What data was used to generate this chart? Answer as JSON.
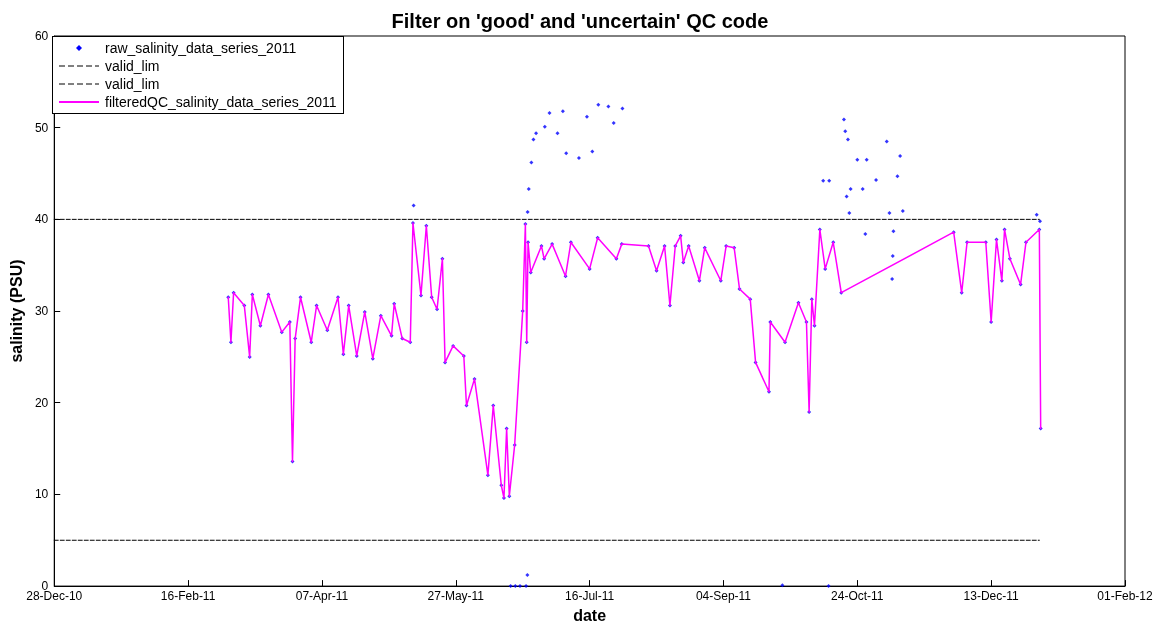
{
  "chart_data": {
    "type": "line",
    "title": "Filter on 'good' and 'uncertain' QC code",
    "xlabel": "date",
    "ylabel": "salinity (PSU)",
    "xlim": [
      "2010-12-28",
      "2012-02-01"
    ],
    "xticks": [
      {
        "value": "2010-12-28",
        "label": "28-Dec-10"
      },
      {
        "value": "2011-02-16",
        "label": "16-Feb-11"
      },
      {
        "value": "2011-04-07",
        "label": "07-Apr-11"
      },
      {
        "value": "2011-05-27",
        "label": "27-May-11"
      },
      {
        "value": "2011-07-16",
        "label": "16-Jul-11"
      },
      {
        "value": "2011-09-04",
        "label": "04-Sep-11"
      },
      {
        "value": "2011-10-24",
        "label": "24-Oct-11"
      },
      {
        "value": "2011-12-13",
        "label": "13-Dec-11"
      },
      {
        "value": "2012-02-01",
        "label": "01-Feb-12"
      }
    ],
    "ylim": [
      0,
      60
    ],
    "yticks": [
      0,
      10,
      20,
      30,
      40,
      50,
      60
    ],
    "grid": false,
    "legend": "top left",
    "series": [
      {
        "name": "raw_salinity_data_series_2011",
        "type": "scatter",
        "marker": "diamond",
        "color": "#0000ff",
        "x": [
          "2011-03-03",
          "2011-03-04",
          "2011-03-05",
          "2011-03-09",
          "2011-03-11",
          "2011-03-12",
          "2011-03-15",
          "2011-03-18",
          "2011-03-23",
          "2011-03-26",
          "2011-03-27",
          "2011-03-28",
          "2011-03-30",
          "2011-04-03",
          "2011-04-05",
          "2011-04-09",
          "2011-04-13",
          "2011-04-15",
          "2011-04-17",
          "2011-04-20",
          "2011-04-23",
          "2011-04-26",
          "2011-04-29",
          "2011-05-03",
          "2011-05-04",
          "2011-05-07",
          "2011-05-10",
          "2011-05-11",
          "2011-05-14",
          "2011-05-16",
          "2011-05-18",
          "2011-05-20",
          "2011-05-22",
          "2011-05-23",
          "2011-05-26",
          "2011-05-30",
          "2011-05-31",
          "2011-06-03",
          "2011-06-08",
          "2011-06-10",
          "2011-06-13",
          "2011-06-14",
          "2011-06-15",
          "2011-06-16",
          "2011-06-18",
          "2011-06-21",
          "2011-06-22",
          "2011-06-22T12:00",
          "2011-06-23",
          "2011-06-24",
          "2011-06-28",
          "2011-06-29",
          "2011-07-02",
          "2011-07-07",
          "2011-07-09",
          "2011-07-16",
          "2011-07-19",
          "2011-07-26",
          "2011-07-28",
          "2011-08-07",
          "2011-08-10",
          "2011-08-13",
          "2011-08-15",
          "2011-08-17",
          "2011-08-19",
          "2011-08-20",
          "2011-08-22",
          "2011-08-26",
          "2011-08-28",
          "2011-09-03",
          "2011-09-05",
          "2011-09-08",
          "2011-09-10",
          "2011-09-14",
          "2011-09-16",
          "2011-09-21",
          "2011-09-21T12:00",
          "2011-09-27",
          "2011-10-02",
          "2011-10-05",
          "2011-10-06",
          "2011-10-07",
          "2011-10-08",
          "2011-10-10",
          "2011-10-12",
          "2011-10-15",
          "2011-10-18",
          "2011-11-29",
          "2011-12-02",
          "2011-12-04",
          "2011-12-11",
          "2011-12-13",
          "2011-12-15",
          "2011-12-17",
          "2011-12-18",
          "2011-12-20",
          "2011-12-24",
          "2011-12-26",
          "2011-12-31",
          "2011-12-31T12:00",
          "2011-05-11T06:00",
          "2011-06-16T12:00",
          "2011-06-18T06:00",
          "2011-06-20",
          "2011-06-22T06:00",
          "2011-06-22T18:00",
          "2011-06-22T20:00",
          "2011-06-23T06:00",
          "2011-06-24T06:00",
          "2011-06-25",
          "2011-06-26",
          "2011-06-29T06:00",
          "2011-07-01",
          "2011-07-04",
          "2011-07-06",
          "2011-07-07T06:00",
          "2011-07-12",
          "2011-07-15",
          "2011-07-17",
          "2011-07-19T06:00",
          "2011-07-23",
          "2011-07-25",
          "2011-07-28T06:00",
          "2011-09-26",
          "2011-10-11T06:00",
          "2011-10-13T06:00",
          "2011-10-13T12:00",
          "2011-10-19",
          "2011-10-19T12:00",
          "2011-10-20",
          "2011-10-20T12:00",
          "2011-10-21",
          "2011-10-21T12:00",
          "2011-10-24",
          "2011-10-26",
          "2011-10-27",
          "2011-10-27T12:00",
          "2011-10-31",
          "2011-11-04",
          "2011-11-05",
          "2011-11-06",
          "2011-11-06T06:00",
          "2011-11-06T12:00",
          "2011-11-08",
          "2011-11-09",
          "2011-11-10",
          "2011-12-30",
          "2011-12-31T06:00"
        ],
        "values": [
          31.5,
          26.6,
          32.0,
          30.6,
          25.0,
          31.8,
          28.4,
          31.8,
          27.7,
          28.8,
          13.6,
          27.0,
          31.5,
          26.6,
          30.6,
          27.9,
          31.5,
          25.3,
          30.6,
          25.1,
          29.9,
          24.8,
          29.5,
          27.3,
          30.8,
          27.0,
          26.6,
          39.6,
          31.7,
          39.3,
          31.5,
          30.2,
          35.7,
          24.4,
          26.2,
          25.1,
          19.7,
          22.6,
          12.1,
          19.7,
          11.0,
          9.6,
          17.2,
          9.8,
          15.4,
          30.0,
          39.5,
          26.6,
          37.5,
          34.2,
          37.1,
          35.7,
          37.3,
          33.8,
          37.5,
          34.6,
          38.0,
          35.7,
          37.3,
          37.1,
          34.4,
          37.1,
          30.6,
          37.1,
          38.2,
          35.3,
          37.1,
          33.3,
          36.9,
          33.3,
          37.1,
          36.9,
          32.4,
          31.3,
          24.4,
          21.2,
          28.8,
          26.6,
          30.9,
          28.8,
          19.0,
          31.3,
          28.4,
          38.9,
          34.6,
          37.5,
          32.0,
          38.6,
          32.0,
          37.5,
          37.5,
          28.8,
          37.8,
          33.3,
          38.9,
          35.7,
          32.9,
          37.5,
          38.9,
          17.2,
          41.5,
          0,
          0,
          0,
          0,
          1.2,
          40.8,
          43.3,
          46.2,
          48.7,
          49.4,
          50.1,
          51.6,
          49.4,
          51.8,
          47.2,
          46.7,
          51.2,
          47.4,
          52.5,
          52.3,
          50.5,
          52.1,
          0.1,
          44.2,
          0,
          44.2,
          50.9,
          49.6,
          42.5,
          48.7,
          40.7,
          43.3,
          46.5,
          43.3,
          38.4,
          46.5,
          44.3,
          48.5,
          40.7,
          33.5,
          36.0,
          38.7,
          44.7,
          46.9,
          40.9,
          40.5,
          39.8
        ]
      },
      {
        "name": "valid_lim",
        "marker": "none",
        "line_style": "dashed",
        "color": "#000000",
        "x": [
          "2010-12-28",
          "2011-12-31"
        ],
        "values": [
          40,
          40
        ]
      },
      {
        "name": "valid_lim",
        "marker": "none",
        "line_style": "dashed",
        "color": "#000000",
        "x": [
          "2010-12-28",
          "2011-12-31"
        ],
        "values": [
          5,
          5
        ]
      },
      {
        "name": "filteredQC_salinity_data_series_2011",
        "marker": "none",
        "line_style": "solid",
        "color": "#ff00ff",
        "x": [
          "2011-03-03",
          "2011-03-04",
          "2011-03-05",
          "2011-03-09",
          "2011-03-11",
          "2011-03-12",
          "2011-03-15",
          "2011-03-18",
          "2011-03-23",
          "2011-03-26",
          "2011-03-27",
          "2011-03-28",
          "2011-03-30",
          "2011-04-03",
          "2011-04-05",
          "2011-04-09",
          "2011-04-13",
          "2011-04-15",
          "2011-04-17",
          "2011-04-20",
          "2011-04-23",
          "2011-04-26",
          "2011-04-29",
          "2011-05-03",
          "2011-05-04",
          "2011-05-07",
          "2011-05-10",
          "2011-05-11",
          "2011-05-14",
          "2011-05-16",
          "2011-05-18",
          "2011-05-20",
          "2011-05-22",
          "2011-05-23",
          "2011-05-26",
          "2011-05-30",
          "2011-05-31",
          "2011-06-03",
          "2011-06-08",
          "2011-06-10",
          "2011-06-13",
          "2011-06-14",
          "2011-06-15",
          "2011-06-16",
          "2011-06-18",
          "2011-06-21",
          "2011-06-22",
          "2011-06-22T12:00",
          "2011-06-23",
          "2011-06-24",
          "2011-06-28",
          "2011-06-29",
          "2011-07-02",
          "2011-07-07",
          "2011-07-09",
          "2011-07-16",
          "2011-07-19",
          "2011-07-26",
          "2011-07-28",
          "2011-08-07",
          "2011-08-10",
          "2011-08-13",
          "2011-08-15",
          "2011-08-17",
          "2011-08-19",
          "2011-08-20",
          "2011-08-22",
          "2011-08-26",
          "2011-08-28",
          "2011-09-03",
          "2011-09-05",
          "2011-09-08",
          "2011-09-10",
          "2011-09-14",
          "2011-09-16",
          "2011-09-21",
          "2011-09-21T12:00",
          "2011-09-27",
          "2011-10-02",
          "2011-10-05",
          "2011-10-06",
          "2011-10-07",
          "2011-10-08",
          "2011-10-10",
          "2011-10-12",
          "2011-10-15",
          "2011-10-18",
          "2011-11-29",
          "2011-12-02",
          "2011-12-04",
          "2011-12-11",
          "2011-12-13",
          "2011-12-15",
          "2011-12-17",
          "2011-12-18",
          "2011-12-20",
          "2011-12-24",
          "2011-12-26",
          "2011-12-31",
          "2011-12-31T12:00"
        ],
        "values": [
          31.5,
          26.6,
          32.0,
          30.6,
          25.0,
          31.8,
          28.4,
          31.8,
          27.7,
          28.8,
          13.6,
          27.0,
          31.5,
          26.6,
          30.6,
          27.9,
          31.5,
          25.3,
          30.6,
          25.1,
          29.9,
          24.8,
          29.5,
          27.3,
          30.8,
          27.0,
          26.6,
          39.6,
          31.7,
          39.3,
          31.5,
          30.2,
          35.7,
          24.4,
          26.2,
          25.1,
          19.7,
          22.6,
          12.1,
          19.7,
          11.0,
          9.6,
          17.2,
          9.8,
          15.4,
          30.0,
          39.5,
          26.6,
          37.5,
          34.2,
          37.1,
          35.7,
          37.3,
          33.8,
          37.5,
          34.6,
          38.0,
          35.7,
          37.3,
          37.1,
          34.4,
          37.1,
          30.6,
          37.1,
          38.2,
          35.3,
          37.1,
          33.3,
          36.9,
          33.3,
          37.1,
          36.9,
          32.4,
          31.3,
          24.4,
          21.2,
          28.8,
          26.6,
          30.9,
          28.8,
          19.0,
          31.3,
          28.4,
          38.9,
          34.6,
          37.5,
          32.0,
          38.6,
          32.0,
          37.5,
          37.5,
          28.8,
          37.8,
          33.3,
          38.9,
          35.7,
          32.9,
          37.5,
          38.9,
          17.2
        ]
      }
    ]
  }
}
